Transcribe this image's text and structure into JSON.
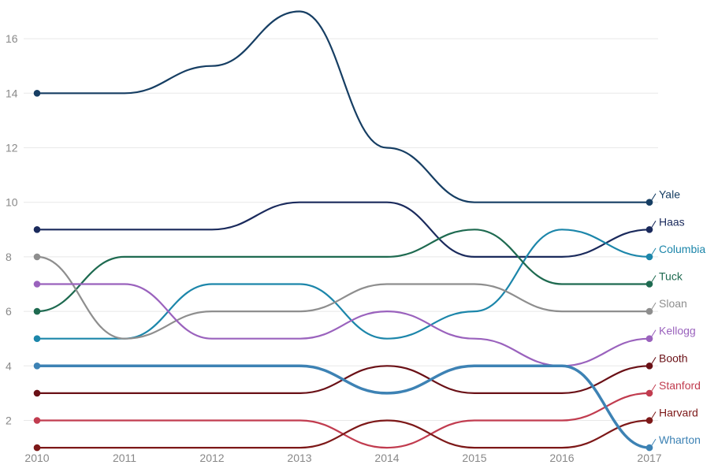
{
  "chart_data": {
    "type": "line",
    "x": [
      "2010",
      "2011",
      "2012",
      "2013",
      "2014",
      "2015",
      "2016",
      "2017"
    ],
    "ylim": [
      0.9,
      17.5
    ],
    "yticks": [
      "2",
      "4",
      "6",
      "8",
      "10",
      "12",
      "14",
      "16"
    ],
    "grid": true,
    "legend": "right-end labels",
    "series": [
      {
        "name": "Yale",
        "color": "#163e63",
        "values": [
          14,
          14,
          15,
          17,
          12,
          10,
          10,
          10
        ]
      },
      {
        "name": "Haas",
        "color": "#1a2a5c",
        "values": [
          9,
          9,
          9,
          10,
          10,
          8,
          8,
          9
        ]
      },
      {
        "name": "Columbia",
        "color": "#1c86aa",
        "values": [
          5,
          5,
          7,
          7,
          5,
          6,
          9,
          8
        ]
      },
      {
        "name": "Tuck",
        "color": "#1e6a50",
        "values": [
          6,
          8,
          8,
          8,
          8,
          9,
          7,
          7
        ]
      },
      {
        "name": "Sloan",
        "color": "#8e8e8e",
        "values": [
          8,
          5,
          6,
          6,
          7,
          7,
          6,
          6
        ]
      },
      {
        "name": "Kellogg",
        "color": "#9a62bd",
        "values": [
          7,
          7,
          5,
          5,
          6,
          5,
          4,
          5
        ]
      },
      {
        "name": "Booth",
        "color": "#6a1016",
        "values": [
          3,
          3,
          3,
          3,
          4,
          3,
          3,
          4
        ]
      },
      {
        "name": "Stanford",
        "color": "#c13c4f",
        "values": [
          2,
          2,
          2,
          2,
          1,
          2,
          2,
          3
        ]
      },
      {
        "name": "Harvard",
        "color": "#7d1818",
        "values": [
          1,
          1,
          1,
          1,
          2,
          1,
          1,
          2
        ]
      },
      {
        "name": "Wharton",
        "color": "#3d82b4",
        "values": [
          4,
          4,
          4,
          4,
          3,
          4,
          4,
          1
        ]
      }
    ]
  }
}
